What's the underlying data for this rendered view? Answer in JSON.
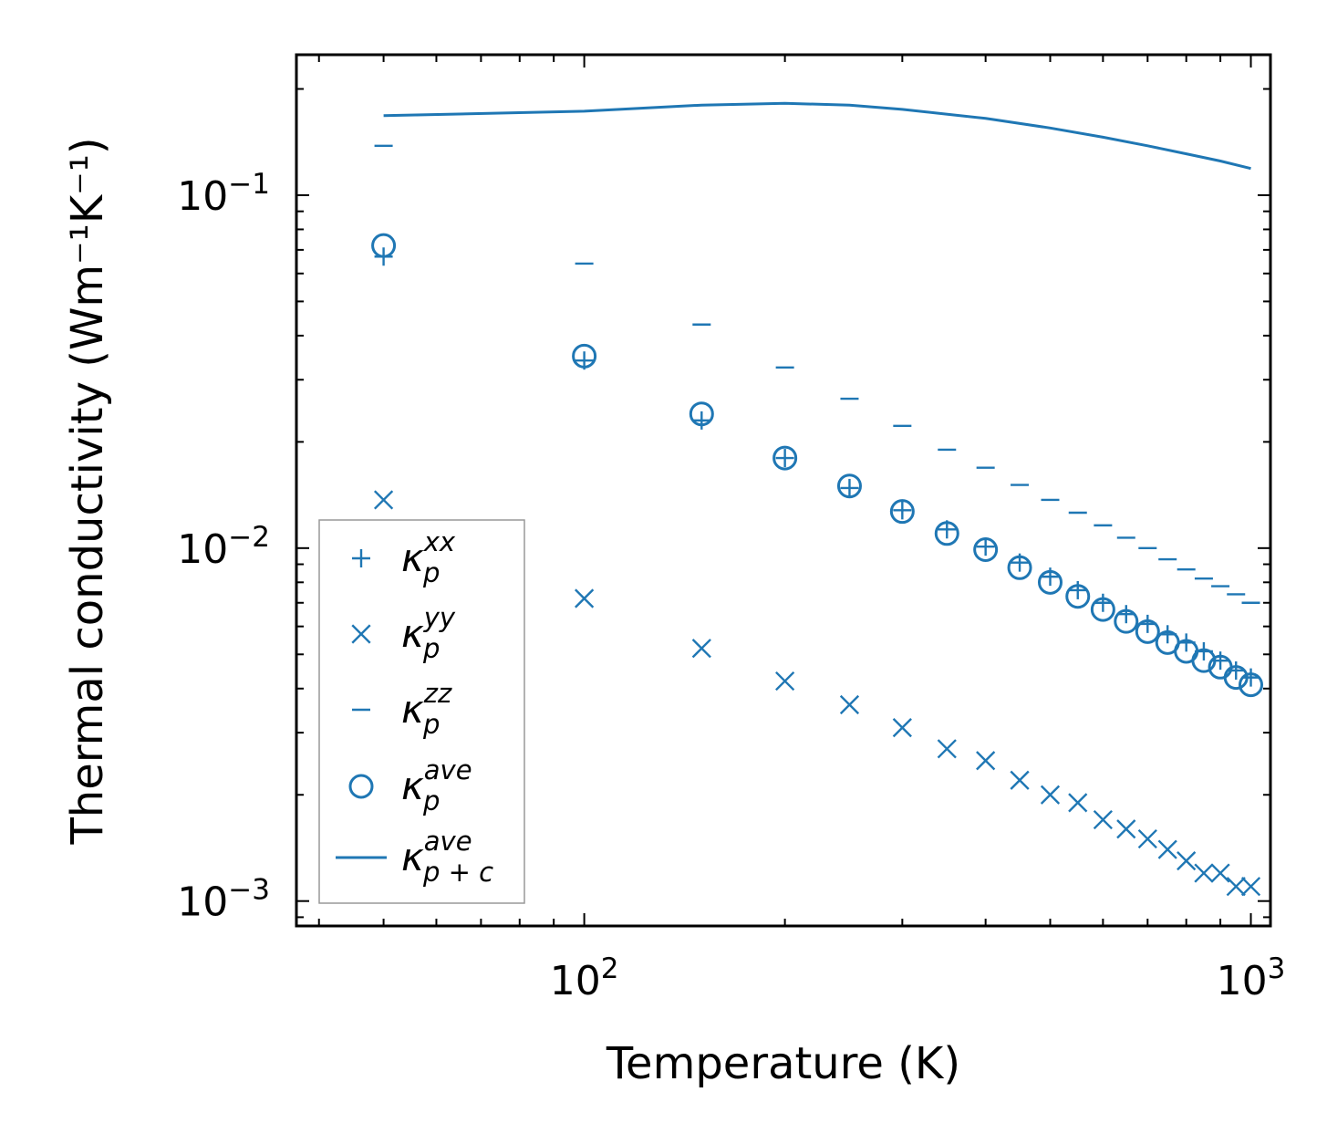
{
  "chart_data": {
    "type": "scatter",
    "xscale": "log",
    "yscale": "log",
    "xlabel": "Temperature (K)",
    "ylabel": "Thermal conductivity (Wm⁻¹K⁻¹)",
    "xlim": [
      37,
      1070
    ],
    "ylim": [
      0.00085,
      0.25
    ],
    "x_ticks": [
      {
        "base": "10",
        "exp": "2",
        "value": 100
      },
      {
        "base": "10",
        "exp": "3",
        "value": 1000
      }
    ],
    "y_ticks": [
      {
        "base": "10",
        "exp": "−1",
        "value": 0.1
      },
      {
        "base": "10",
        "exp": "−2",
        "value": 0.01
      },
      {
        "base": "10",
        "exp": "−3",
        "value": 0.001
      }
    ],
    "color": "#1f77b4",
    "series": [
      {
        "name": "kappa_p_xx",
        "label_main": "κ",
        "label_sub": "p",
        "label_sup": "xx",
        "marker": "plus",
        "x": [
          50,
          100,
          150,
          200,
          250,
          300,
          350,
          400,
          450,
          500,
          550,
          600,
          650,
          700,
          750,
          800,
          850,
          900,
          950,
          1000
        ],
        "y": [
          0.067,
          0.034,
          0.023,
          0.018,
          0.0148,
          0.0128,
          0.0113,
          0.0101,
          0.0091,
          0.0083,
          0.0076,
          0.007,
          0.0065,
          0.0061,
          0.0057,
          0.0054,
          0.0051,
          0.0048,
          0.0045,
          0.0043
        ]
      },
      {
        "name": "kappa_p_yy",
        "label_main": "κ",
        "label_sub": "p",
        "label_sup": "yy",
        "marker": "x",
        "x": [
          50,
          100,
          150,
          200,
          250,
          300,
          350,
          400,
          450,
          500,
          550,
          600,
          650,
          700,
          750,
          800,
          850,
          900,
          950,
          1000
        ],
        "y": [
          0.0137,
          0.0072,
          0.0052,
          0.0042,
          0.0036,
          0.0031,
          0.0027,
          0.0025,
          0.0022,
          0.002,
          0.0019,
          0.0017,
          0.0016,
          0.0015,
          0.0014,
          0.0013,
          0.0012,
          0.0012,
          0.0011,
          0.0011
        ]
      },
      {
        "name": "kappa_p_zz",
        "label_main": "κ",
        "label_sub": "p",
        "label_sup": "zz",
        "marker": "hline",
        "x": [
          50,
          100,
          150,
          200,
          250,
          300,
          350,
          400,
          450,
          500,
          550,
          600,
          650,
          700,
          750,
          800,
          850,
          900,
          950,
          1000
        ],
        "y": [
          0.138,
          0.064,
          0.043,
          0.0325,
          0.0265,
          0.0222,
          0.019,
          0.0169,
          0.0151,
          0.0137,
          0.0126,
          0.0116,
          0.0107,
          0.01,
          0.0093,
          0.0087,
          0.0082,
          0.0078,
          0.0074,
          0.007
        ]
      },
      {
        "name": "kappa_p_ave",
        "label_main": "κ",
        "label_sub": "p",
        "label_sup": "ave",
        "marker": "circle",
        "x": [
          50,
          100,
          150,
          200,
          250,
          300,
          350,
          400,
          450,
          500,
          550,
          600,
          650,
          700,
          750,
          800,
          850,
          900,
          950,
          1000
        ],
        "y": [
          0.072,
          0.035,
          0.024,
          0.018,
          0.015,
          0.0127,
          0.011,
          0.0099,
          0.0088,
          0.008,
          0.0073,
          0.0067,
          0.0062,
          0.0058,
          0.0054,
          0.0051,
          0.0048,
          0.0046,
          0.0043,
          0.0041
        ]
      },
      {
        "name": "kappa_pc_ave",
        "label_main": "κ",
        "label_sub": "p + c",
        "label_sup": "ave",
        "marker": "line",
        "x": [
          50,
          100,
          150,
          200,
          250,
          300,
          400,
          500,
          600,
          700,
          800,
          900,
          1000
        ],
        "y": [
          0.168,
          0.173,
          0.18,
          0.182,
          0.18,
          0.175,
          0.165,
          0.155,
          0.146,
          0.138,
          0.131,
          0.125,
          0.119
        ]
      }
    ],
    "legend_position": "lower-left"
  }
}
